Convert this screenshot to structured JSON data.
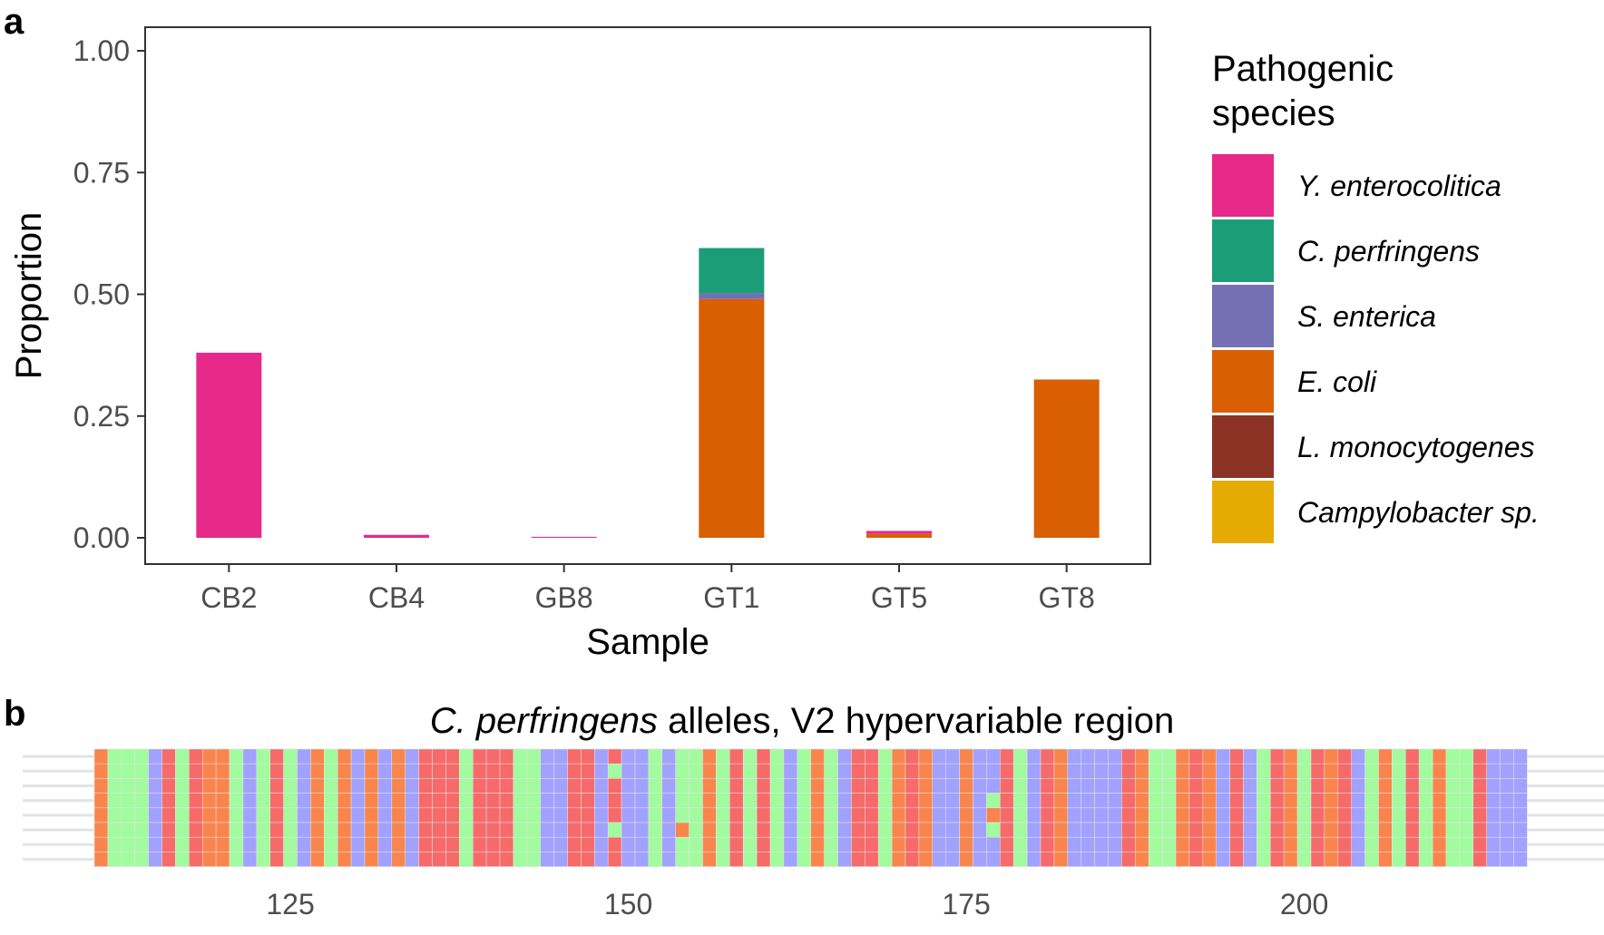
{
  "panel_a": {
    "letter": "a",
    "legend_title_line1": "Pathogenic",
    "legend_title_line2": "species"
  },
  "panel_b": {
    "letter": "b",
    "title_italic": "C. perfringens",
    "title_rest": " alleles, V2 hypervariable region"
  },
  "chart_data": [
    {
      "type": "bar",
      "stacked": true,
      "xlabel": "Sample",
      "ylabel": "Proportion",
      "ylim": [
        0,
        1.07
      ],
      "yticks": [
        "0.00",
        "0.25",
        "0.50",
        "0.75",
        "1.00"
      ],
      "categories": [
        "CB2",
        "CB4",
        "GB8",
        "GT1",
        "GT5",
        "GT8"
      ],
      "legend_position": "right",
      "series": [
        {
          "name": "Campylobacter sp.",
          "color": "#E6AB02",
          "values": [
            0,
            0,
            0,
            0,
            0,
            0
          ]
        },
        {
          "name": "L. monocytogenes",
          "color": "#8B3325",
          "values": [
            0,
            0,
            0,
            0,
            0,
            0
          ]
        },
        {
          "name": "E. coli",
          "color": "#D95F02",
          "values": [
            0,
            0,
            0,
            0.49,
            0.008,
            0.325
          ]
        },
        {
          "name": "S. enterica",
          "color": "#7570B3",
          "values": [
            0,
            0,
            0,
            0.012,
            0,
            0
          ]
        },
        {
          "name": "C. perfringens",
          "color": "#1B9E77",
          "values": [
            0,
            0,
            0,
            0.093,
            0,
            0
          ]
        },
        {
          "name": "Y. enterocolitica",
          "color": "#E7298A",
          "values": [
            0.38,
            0.006,
            0.002,
            0,
            0.006,
            0
          ]
        }
      ],
      "legend_order": [
        "Y. enterocolitica",
        "C. perfringens",
        "S. enterica",
        "E. coli",
        "L. monocytogenes",
        "Campylobacter sp."
      ]
    },
    {
      "type": "heatmap",
      "title": "C. perfringens alleles, V2 hypervariable region",
      "x_start": 111,
      "x_end": 216,
      "xticks": [
        "125",
        "150",
        "175",
        "200"
      ],
      "xtick_values": [
        125,
        150,
        175,
        200
      ],
      "n_alleles": 8,
      "base_colors": {
        "A": "#A2FB9E",
        "C": "#A1A1FF",
        "G": "#F9854D",
        "T": "#F76A6A"
      },
      "consensus": "GAAACTATGGACATACGAGCGCGCTTTATTTAACCTTCTCCACAAGATATACAGACTTAGTGCCGCCTACTGCCCCTGAAGTGCTCATGATGTCAGATAGAATCCC",
      "variants": [
        {
          "allele": 2,
          "position": 149,
          "base": "A"
        },
        {
          "allele": 6,
          "position": 149,
          "base": "A"
        },
        {
          "allele": 6,
          "position": 154,
          "base": "G"
        },
        {
          "allele": 4,
          "position": 177,
          "base": "A"
        },
        {
          "allele": 5,
          "position": 177,
          "base": "G"
        },
        {
          "allele": 6,
          "position": 177,
          "base": "A"
        },
        {
          "allele": 6,
          "position": 190,
          "base": "A"
        }
      ]
    }
  ]
}
